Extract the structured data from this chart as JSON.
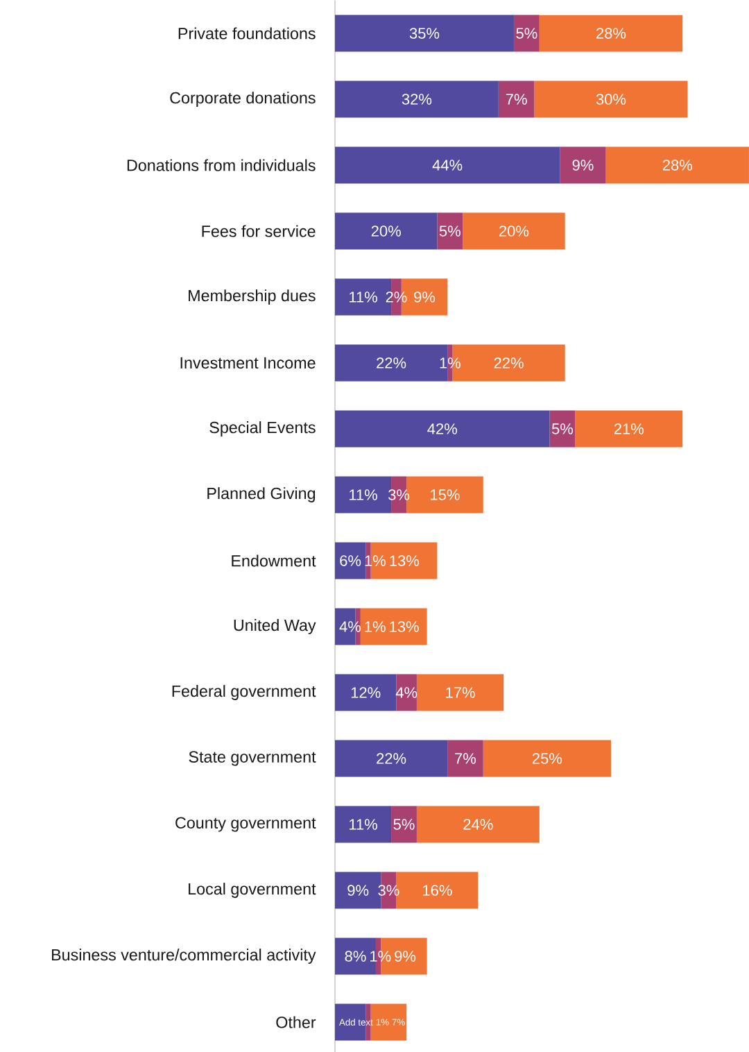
{
  "chart_data": {
    "type": "bar",
    "orientation": "horizontal",
    "stacked": true,
    "categories": [
      "Private foundations",
      "Corporate donations",
      "Donations from individuals",
      "Fees for service",
      "Membership dues",
      "Investment Income",
      "Special Events",
      "Planned Giving",
      "Endowment",
      "United Way",
      "Federal government",
      "State government",
      "County government",
      "Local government",
      "Business venture/commercial activity",
      "Other"
    ],
    "series": [
      {
        "color": "#524a9e",
        "values": [
          35,
          32,
          44,
          20,
          11,
          22,
          42,
          11,
          6,
          4,
          12,
          22,
          11,
          9,
          8,
          6
        ],
        "value_labels": [
          "35%",
          "32%",
          "44%",
          "20%",
          "11%",
          "22%",
          "42%",
          "11%",
          "6%",
          "4%",
          "12%",
          "22%",
          "11%",
          "9%",
          "8%",
          "Add text"
        ]
      },
      {
        "color": "#a8416f",
        "values": [
          5,
          7,
          9,
          5,
          2,
          1,
          5,
          3,
          1,
          1,
          4,
          7,
          5,
          3,
          1,
          1
        ],
        "value_labels": [
          "5%",
          "7%",
          "9%",
          "5%",
          "2%",
          "1%",
          "5%",
          "3%",
          "1%",
          "1%",
          "4%",
          "7%",
          "5%",
          "3%",
          "1%",
          "1%"
        ]
      },
      {
        "color": "#f07434",
        "values": [
          28,
          30,
          28,
          20,
          9,
          22,
          21,
          15,
          13,
          13,
          17,
          25,
          24,
          16,
          9,
          7
        ],
        "value_labels": [
          "28%",
          "30%",
          "28%",
          "20%",
          "9%",
          "22%",
          "21%",
          "15%",
          "13%",
          "13%",
          "17%",
          "25%",
          "24%",
          "16%",
          "9%",
          "7%"
        ]
      }
    ]
  }
}
